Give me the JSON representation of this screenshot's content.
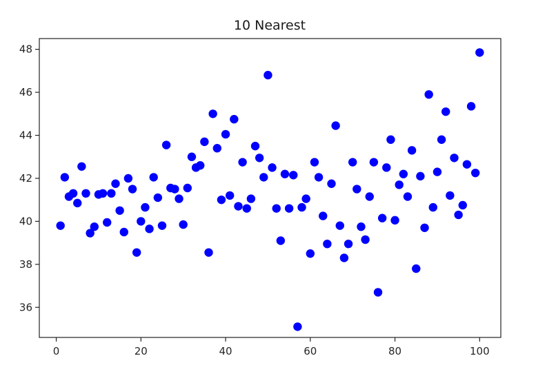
{
  "chart_data": {
    "type": "scatter",
    "title": "10 Nearest",
    "xlabel": "",
    "ylabel": "",
    "xlim": [
      -4,
      105
    ],
    "ylim": [
      34.6,
      48.5
    ],
    "xticks": [
      0,
      20,
      40,
      60,
      80,
      100
    ],
    "yticks": [
      36,
      38,
      40,
      42,
      44,
      46,
      48
    ],
    "grid": false,
    "legend": "none",
    "marker_color": "#0000ff",
    "series": [
      {
        "x": [
          1,
          2,
          3,
          4,
          5,
          6,
          7,
          8,
          9,
          10,
          11,
          12,
          13,
          14,
          15,
          16,
          17,
          18,
          19,
          20,
          21,
          22,
          23,
          24,
          25,
          26,
          27,
          28,
          29,
          30,
          31,
          32,
          33,
          34,
          35,
          36,
          37,
          38,
          39,
          40,
          41,
          42,
          43,
          44,
          45,
          46,
          47,
          48,
          49,
          50,
          51,
          52,
          53,
          54,
          55,
          56,
          57,
          58,
          59,
          60,
          61,
          62,
          63,
          64,
          65,
          66,
          67,
          68,
          69,
          70,
          71,
          72,
          73,
          74,
          75,
          76,
          77,
          78,
          79,
          80,
          81,
          82,
          83,
          84,
          85,
          86,
          87,
          88,
          89,
          90,
          91,
          92,
          93,
          94,
          95,
          96,
          97,
          98,
          99,
          100
        ],
        "y": [
          39.8,
          42.05,
          41.15,
          41.3,
          40.85,
          42.55,
          41.3,
          39.45,
          39.75,
          41.25,
          41.3,
          39.95,
          41.3,
          41.75,
          40.5,
          39.5,
          42.0,
          41.5,
          38.55,
          40.0,
          40.65,
          39.65,
          42.05,
          41.1,
          39.8,
          43.55,
          41.55,
          41.5,
          41.05,
          39.85,
          41.55,
          43.0,
          42.5,
          42.6,
          43.7,
          38.55,
          45.0,
          43.4,
          41.0,
          44.05,
          41.2,
          44.75,
          40.7,
          42.75,
          40.6,
          41.05,
          43.5,
          42.95,
          42.05,
          46.8,
          42.5,
          40.6,
          39.1,
          42.2,
          40.6,
          42.15,
          35.1,
          40.65,
          41.05,
          38.5,
          42.75,
          42.05,
          40.25,
          38.95,
          41.75,
          44.45,
          39.8,
          38.3,
          38.95,
          42.75,
          41.5,
          39.75,
          39.15,
          41.15,
          42.75,
          36.7,
          40.15,
          42.5,
          43.8,
          40.05,
          41.7,
          42.2,
          41.15,
          43.3,
          37.8,
          42.1,
          39.7,
          45.9,
          40.65,
          42.3,
          43.8,
          45.1,
          41.2,
          42.95,
          40.3,
          40.75,
          42.65,
          45.35,
          42.25,
          47.85
        ]
      }
    ]
  }
}
